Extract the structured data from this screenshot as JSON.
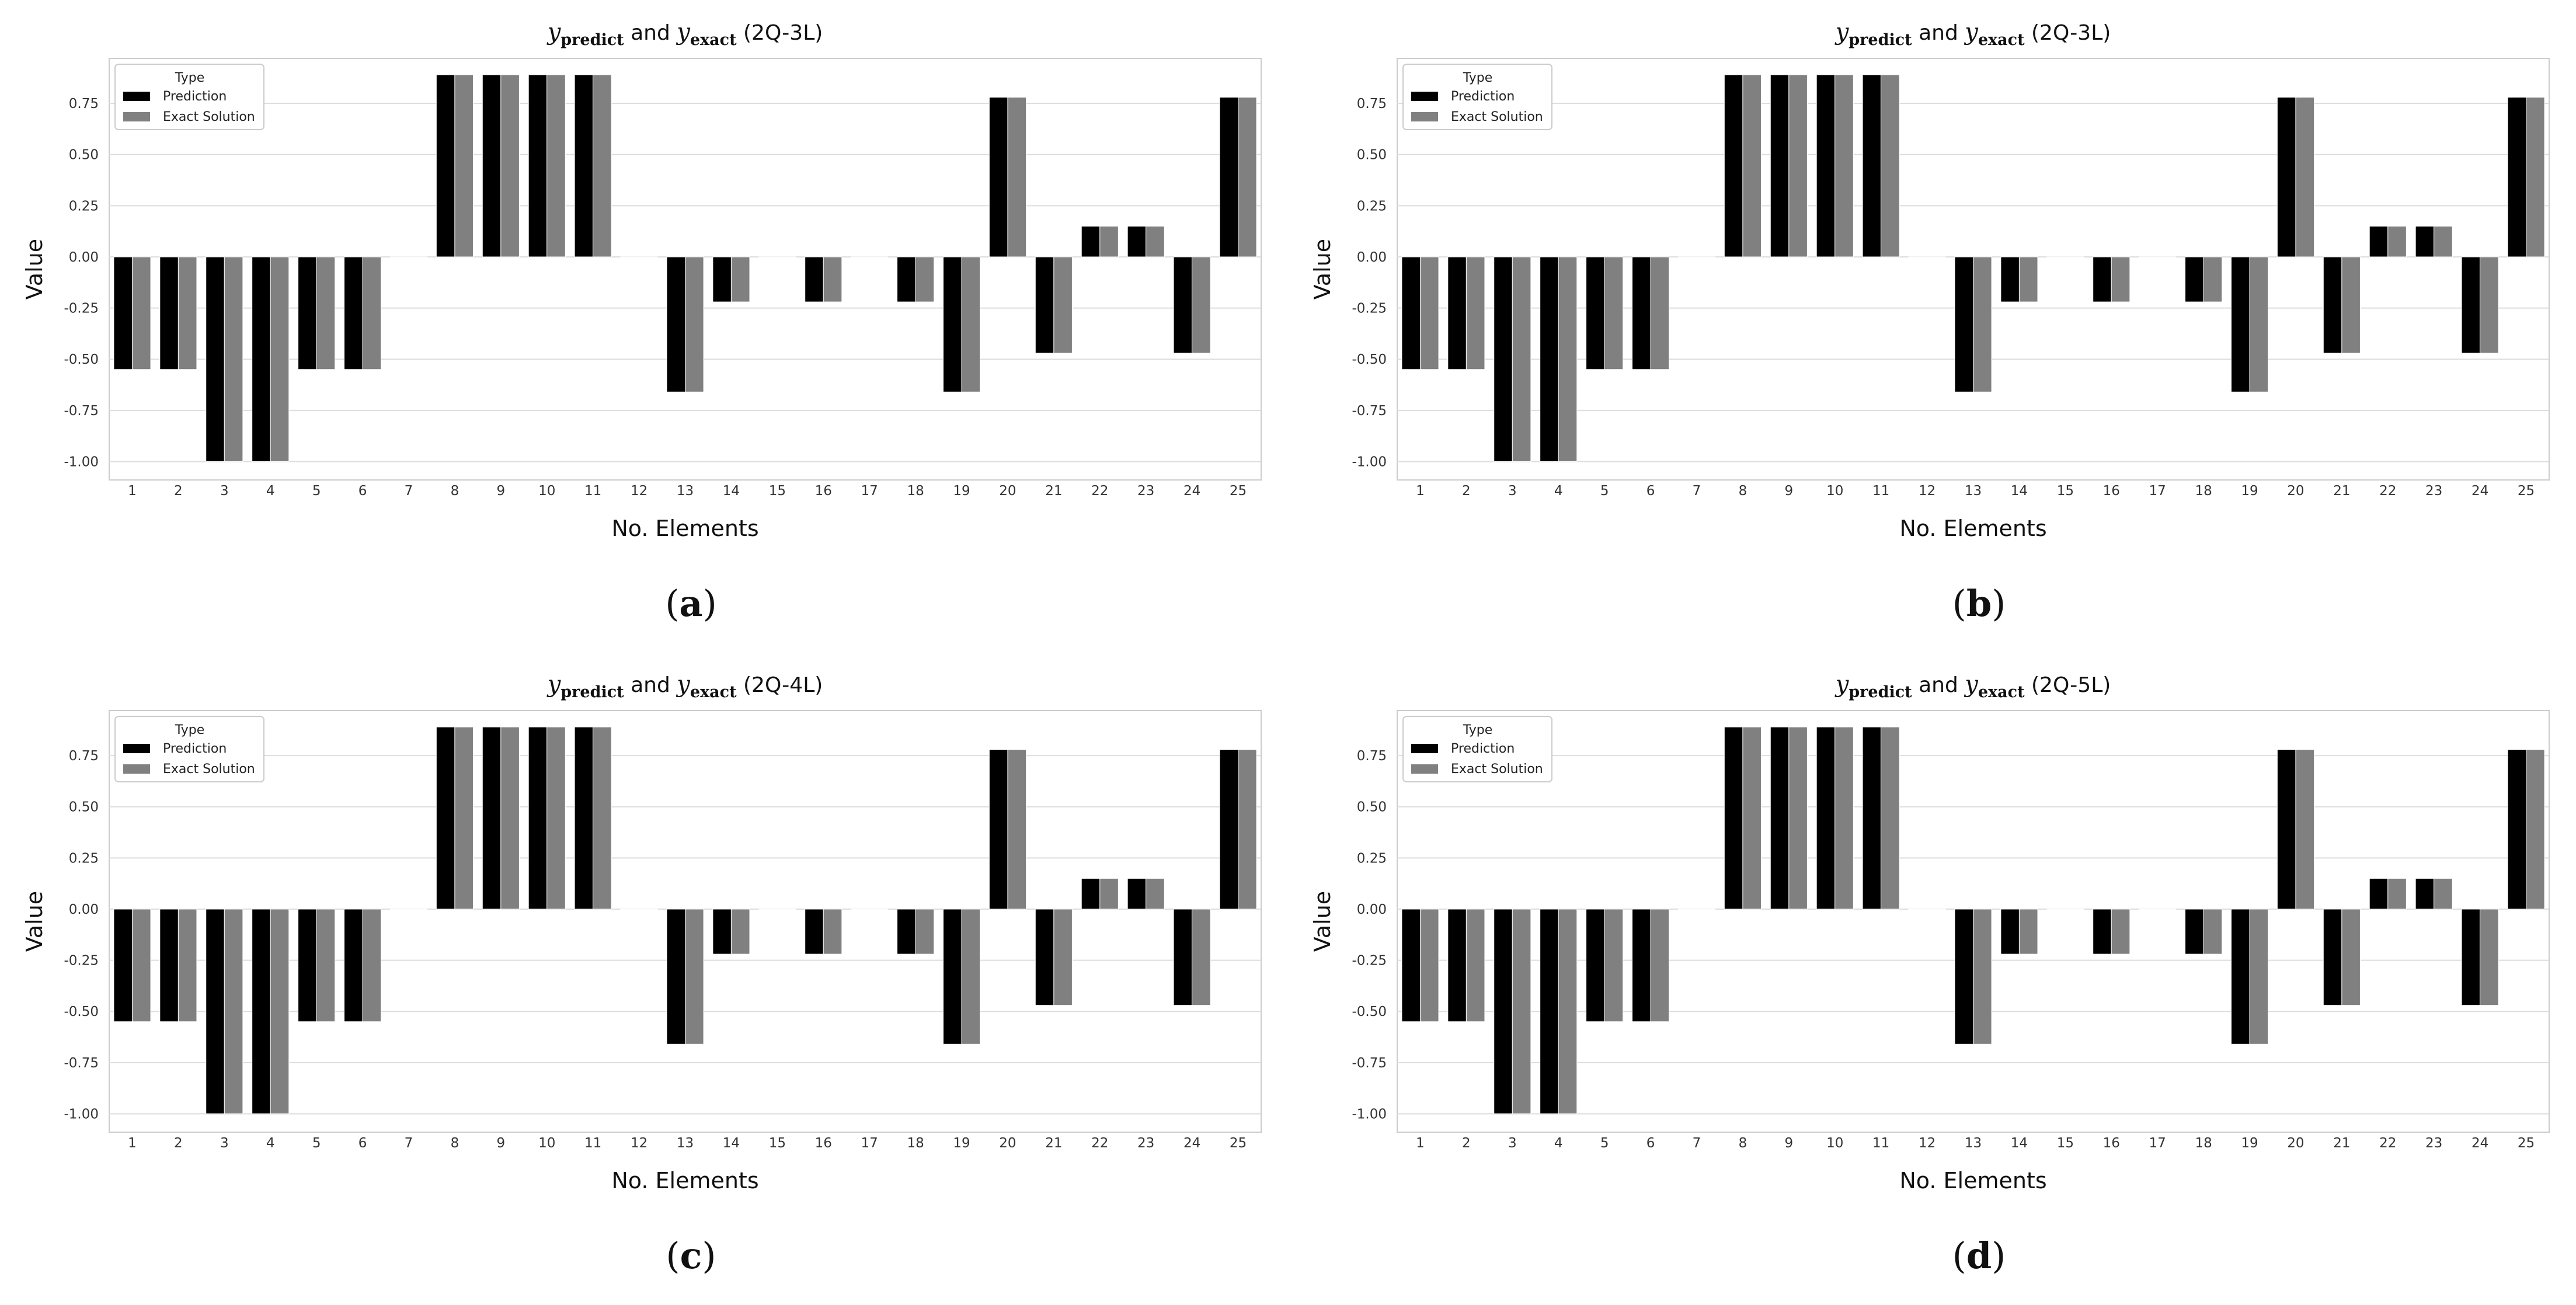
{
  "panels": [
    {
      "caption_letter": "a",
      "title": {
        "prefix": "y",
        "sub1": "predict",
        "mid": " and ",
        "prefix2": "y",
        "sub2": "exact",
        "suffix": " (2Q-3L)"
      }
    },
    {
      "caption_letter": "b",
      "title": {
        "prefix": "y",
        "sub1": "predict",
        "mid": " and ",
        "prefix2": "y",
        "sub2": "exact",
        "suffix": " (2Q-3L)"
      }
    },
    {
      "caption_letter": "c",
      "title": {
        "prefix": "y",
        "sub1": "predict",
        "mid": " and ",
        "prefix2": "y",
        "sub2": "exact",
        "suffix": " (2Q-4L)"
      }
    },
    {
      "caption_letter": "d",
      "title": {
        "prefix": "y",
        "sub1": "predict",
        "mid": " and ",
        "prefix2": "y",
        "sub2": "exact",
        "suffix": " (2Q-5L)"
      }
    }
  ],
  "caption_open": "(",
  "caption_close": ")",
  "legend": {
    "title": "Type",
    "prediction": "Prediction",
    "exact": "Exact Solution"
  },
  "colors": {
    "prediction": "#000000",
    "exact": "#808080",
    "grid": "#dddddd",
    "frame": "#cccccc"
  },
  "chart_data": [
    {
      "type": "bar",
      "title": "y_predict and y_exact (2Q-3L)",
      "xlabel": "No. Elements",
      "ylabel": "Value",
      "ylim": [
        -1.09,
        0.97
      ],
      "yticks": [
        "-1.00",
        "-0.75",
        "-0.50",
        "-0.25",
        "0.00",
        "0.25",
        "0.50",
        "0.75"
      ],
      "categories": [
        "1",
        "2",
        "3",
        "4",
        "5",
        "6",
        "7",
        "8",
        "9",
        "10",
        "11",
        "12",
        "13",
        "14",
        "15",
        "16",
        "17",
        "18",
        "19",
        "20",
        "21",
        "22",
        "23",
        "24",
        "25"
      ],
      "series": [
        {
          "name": "Prediction",
          "values": [
            -0.55,
            -0.55,
            -1.0,
            -1.0,
            -0.55,
            -0.55,
            0,
            0.89,
            0.89,
            0.89,
            0.89,
            0,
            -0.66,
            -0.22,
            0,
            -0.22,
            0,
            -0.22,
            -0.66,
            0.78,
            -0.47,
            0.15,
            0.15,
            -0.47,
            0.78
          ]
        },
        {
          "name": "Exact Solution",
          "values": [
            -0.55,
            -0.55,
            -1.0,
            -1.0,
            -0.55,
            -0.55,
            0,
            0.89,
            0.89,
            0.89,
            0.89,
            0,
            -0.66,
            -0.22,
            0,
            -0.22,
            0,
            -0.22,
            -0.66,
            0.78,
            -0.47,
            0.15,
            0.15,
            -0.47,
            0.78
          ]
        }
      ]
    },
    {
      "type": "bar",
      "title": "y_predict and y_exact (2Q-3L)",
      "xlabel": "No. Elements",
      "ylabel": "Value",
      "ylim": [
        -1.09,
        0.97
      ],
      "yticks": [
        "-1.00",
        "-0.75",
        "-0.50",
        "-0.25",
        "0.00",
        "0.25",
        "0.50",
        "0.75"
      ],
      "categories": [
        "1",
        "2",
        "3",
        "4",
        "5",
        "6",
        "7",
        "8",
        "9",
        "10",
        "11",
        "12",
        "13",
        "14",
        "15",
        "16",
        "17",
        "18",
        "19",
        "20",
        "21",
        "22",
        "23",
        "24",
        "25"
      ],
      "series": [
        {
          "name": "Prediction",
          "values": [
            -0.55,
            -0.55,
            -1.0,
            -1.0,
            -0.55,
            -0.55,
            0,
            0.89,
            0.89,
            0.89,
            0.89,
            0,
            -0.66,
            -0.22,
            0,
            -0.22,
            0,
            -0.22,
            -0.66,
            0.78,
            -0.47,
            0.15,
            0.15,
            -0.47,
            0.78
          ]
        },
        {
          "name": "Exact Solution",
          "values": [
            -0.55,
            -0.55,
            -1.0,
            -1.0,
            -0.55,
            -0.55,
            0,
            0.89,
            0.89,
            0.89,
            0.89,
            0,
            -0.66,
            -0.22,
            0,
            -0.22,
            0,
            -0.22,
            -0.66,
            0.78,
            -0.47,
            0.15,
            0.15,
            -0.47,
            0.78
          ]
        }
      ]
    },
    {
      "type": "bar",
      "title": "y_predict and y_exact (2Q-4L)",
      "xlabel": "No. Elements",
      "ylabel": "Value",
      "ylim": [
        -1.09,
        0.97
      ],
      "yticks": [
        "-1.00",
        "-0.75",
        "-0.50",
        "-0.25",
        "0.00",
        "0.25",
        "0.50",
        "0.75"
      ],
      "categories": [
        "1",
        "2",
        "3",
        "4",
        "5",
        "6",
        "7",
        "8",
        "9",
        "10",
        "11",
        "12",
        "13",
        "14",
        "15",
        "16",
        "17",
        "18",
        "19",
        "20",
        "21",
        "22",
        "23",
        "24",
        "25"
      ],
      "series": [
        {
          "name": "Prediction",
          "values": [
            -0.55,
            -0.55,
            -1.0,
            -1.0,
            -0.55,
            -0.55,
            0,
            0.89,
            0.89,
            0.89,
            0.89,
            0,
            -0.66,
            -0.22,
            0,
            -0.22,
            0,
            -0.22,
            -0.66,
            0.78,
            -0.47,
            0.15,
            0.15,
            -0.47,
            0.78
          ]
        },
        {
          "name": "Exact Solution",
          "values": [
            -0.55,
            -0.55,
            -1.0,
            -1.0,
            -0.55,
            -0.55,
            0,
            0.89,
            0.89,
            0.89,
            0.89,
            0,
            -0.66,
            -0.22,
            0,
            -0.22,
            0,
            -0.22,
            -0.66,
            0.78,
            -0.47,
            0.15,
            0.15,
            -0.47,
            0.78
          ]
        }
      ]
    },
    {
      "type": "bar",
      "title": "y_predict and y_exact (2Q-5L)",
      "xlabel": "No. Elements",
      "ylabel": "Value",
      "ylim": [
        -1.09,
        0.97
      ],
      "yticks": [
        "-1.00",
        "-0.75",
        "-0.50",
        "-0.25",
        "0.00",
        "0.25",
        "0.50",
        "0.75"
      ],
      "categories": [
        "1",
        "2",
        "3",
        "4",
        "5",
        "6",
        "7",
        "8",
        "9",
        "10",
        "11",
        "12",
        "13",
        "14",
        "15",
        "16",
        "17",
        "18",
        "19",
        "20",
        "21",
        "22",
        "23",
        "24",
        "25"
      ],
      "series": [
        {
          "name": "Prediction",
          "values": [
            -0.55,
            -0.55,
            -1.0,
            -1.0,
            -0.55,
            -0.55,
            0,
            0.89,
            0.89,
            0.89,
            0.89,
            0,
            -0.66,
            -0.22,
            0,
            -0.22,
            0,
            -0.22,
            -0.66,
            0.78,
            -0.47,
            0.15,
            0.15,
            -0.47,
            0.78
          ]
        },
        {
          "name": "Exact Solution",
          "values": [
            -0.55,
            -0.55,
            -1.0,
            -1.0,
            -0.55,
            -0.55,
            0,
            0.89,
            0.89,
            0.89,
            0.89,
            0,
            -0.66,
            -0.22,
            0,
            -0.22,
            0,
            -0.22,
            -0.66,
            0.78,
            -0.47,
            0.15,
            0.15,
            -0.47,
            0.78
          ]
        }
      ]
    }
  ]
}
